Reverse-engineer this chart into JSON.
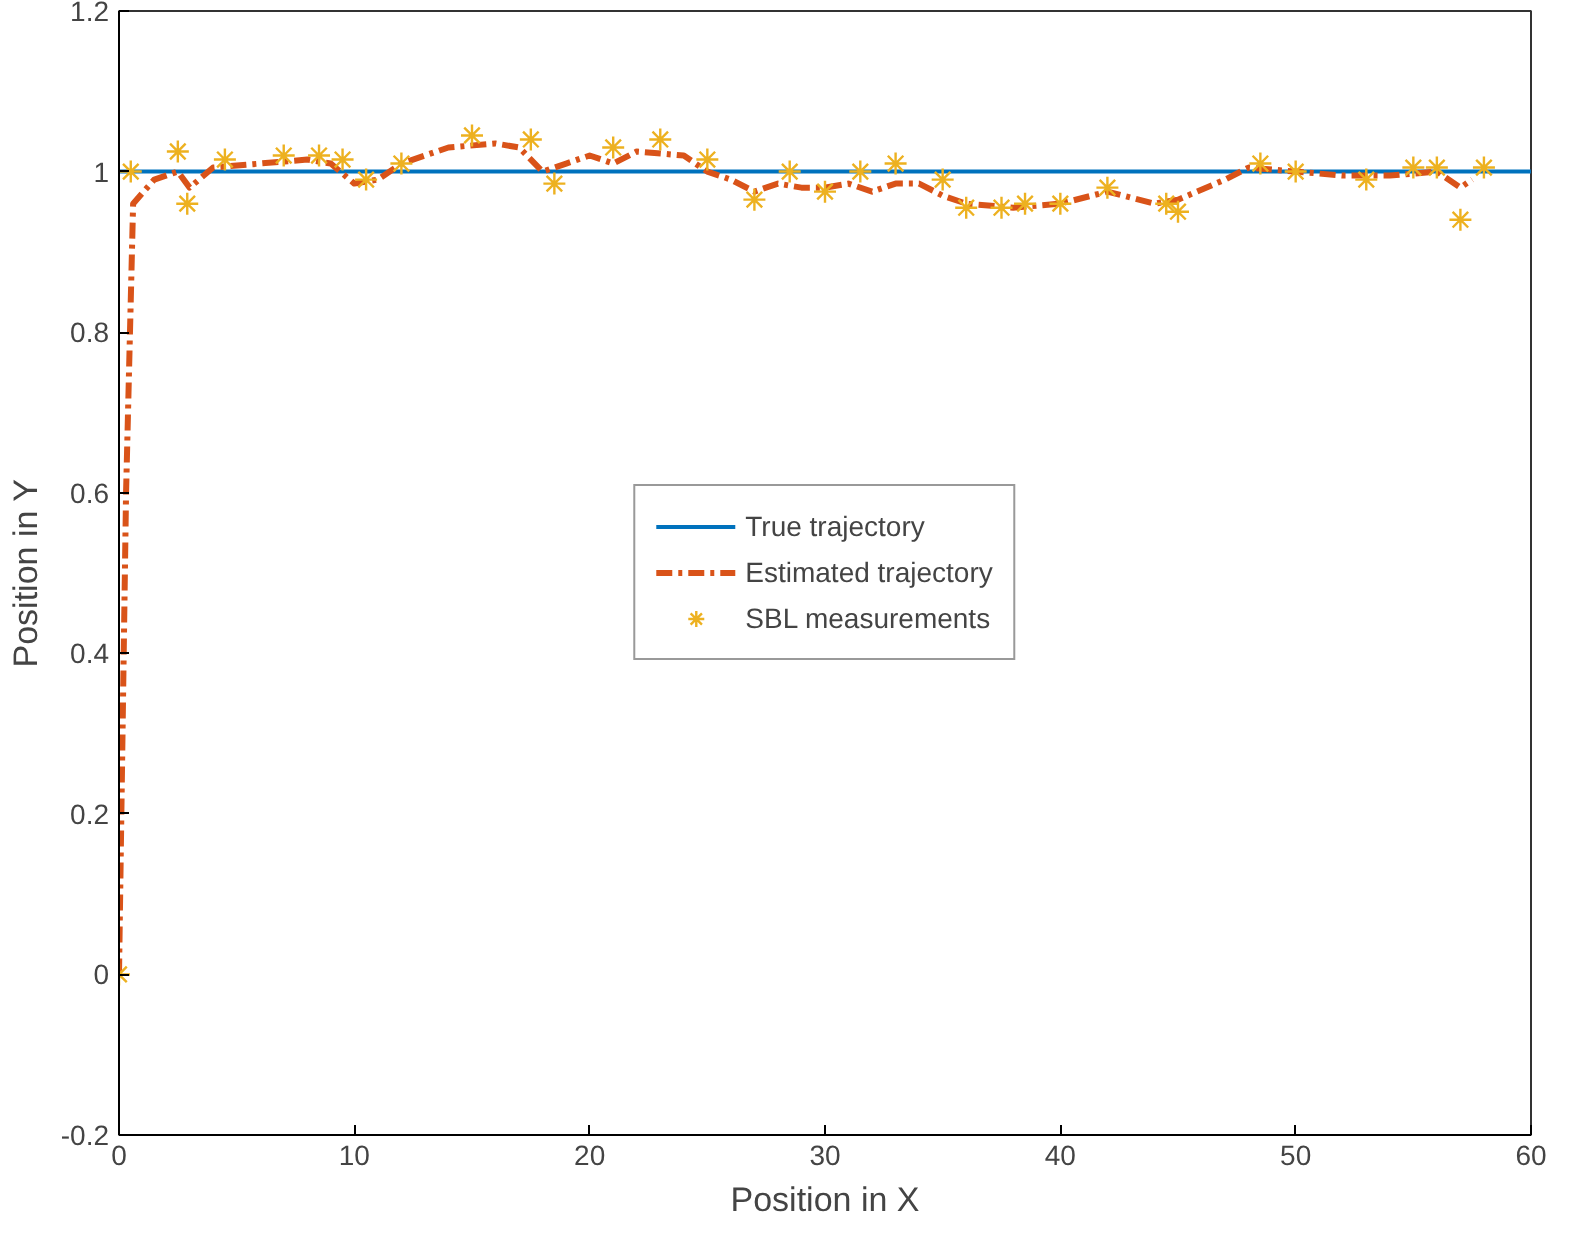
{
  "chart_data": {
    "type": "line",
    "xlabel": "Position in X",
    "ylabel": "Position in Y",
    "xlim": [
      0,
      60
    ],
    "xticks": [
      0,
      10,
      20,
      30,
      40,
      50,
      60
    ],
    "ylim": [
      -0.2,
      1.2
    ],
    "yticks": [
      -0.2,
      0,
      0.2,
      0.4,
      0.6,
      0.8,
      1,
      1.2
    ],
    "grid": false,
    "legend": "center",
    "series": [
      {
        "name": "True trajectory",
        "color": "#0072bd",
        "line_style": "solid",
        "x": [
          0,
          60
        ],
        "values": [
          1,
          1
        ]
      },
      {
        "name": "Estimated trajectory",
        "color": "#d95319",
        "line_style": "dashed",
        "x": [
          0,
          0.3,
          0.6,
          1.5,
          2.5,
          3,
          4,
          6,
          8,
          9,
          10,
          11,
          12,
          14,
          16,
          17,
          18,
          19,
          20,
          21,
          22,
          24,
          25,
          26,
          27,
          28,
          29,
          30,
          31,
          32,
          33,
          34,
          35,
          36,
          38,
          40,
          42,
          44,
          45,
          47,
          48,
          50,
          52,
          54,
          56,
          57,
          57.5
        ],
        "values": [
          0,
          0.6,
          0.96,
          0.99,
          1.0,
          0.98,
          1.005,
          1.01,
          1.015,
          1.01,
          0.985,
          0.99,
          1.01,
          1.03,
          1.035,
          1.03,
          1.0,
          1.01,
          1.02,
          1.01,
          1.025,
          1.02,
          1.0,
          0.99,
          0.975,
          0.985,
          0.98,
          0.98,
          0.985,
          0.975,
          0.985,
          0.985,
          0.97,
          0.96,
          0.955,
          0.96,
          0.975,
          0.96,
          0.965,
          0.99,
          1.005,
          1.0,
          0.995,
          0.995,
          1.0,
          0.98,
          0.99
        ]
      },
      {
        "name": "SBL measurements",
        "type": "scatter",
        "color": "#edb120",
        "marker": "cross",
        "x": [
          0,
          0.5,
          2.5,
          2.9,
          4.5,
          7,
          8.5,
          9.5,
          10.5,
          12,
          15,
          17.5,
          18.5,
          21,
          23,
          25,
          27,
          28.5,
          30,
          31.5,
          33,
          35,
          36,
          37.5,
          38.5,
          40,
          42,
          44.5,
          45,
          48.5,
          50,
          53,
          55,
          56,
          57,
          58
        ],
        "values": [
          0,
          1.0,
          1.025,
          0.96,
          1.015,
          1.02,
          1.02,
          1.015,
          0.99,
          1.01,
          1.045,
          1.04,
          0.985,
          1.03,
          1.04,
          1.015,
          0.965,
          1.0,
          0.975,
          1.0,
          1.01,
          0.99,
          0.955,
          0.955,
          0.96,
          0.96,
          0.98,
          0.96,
          0.95,
          1.01,
          1.0,
          0.99,
          1.005,
          1.005,
          0.94,
          1.005
        ]
      }
    ]
  }
}
